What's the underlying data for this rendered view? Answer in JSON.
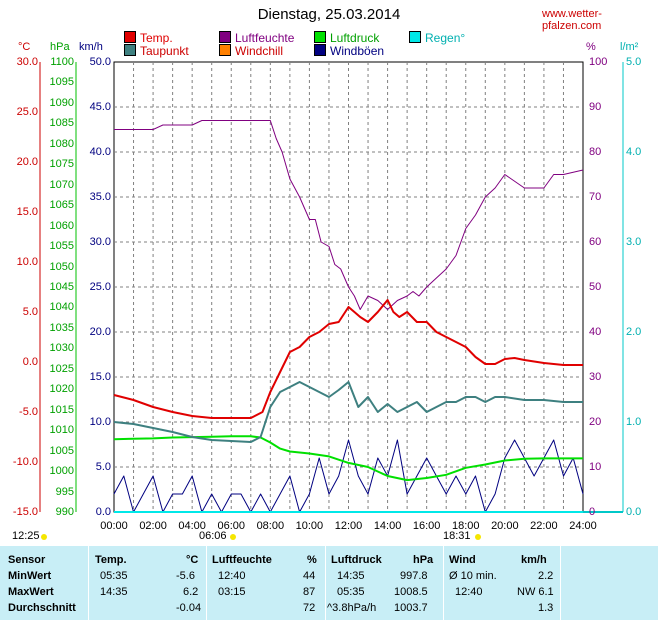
{
  "title": "Dienstag, 25.03.2014",
  "source": "www.wetter-pfalzen.com",
  "legend": [
    {
      "label": "Temp.",
      "color": "#e00000"
    },
    {
      "label": "Luftfeuchte",
      "color": "#800080"
    },
    {
      "label": "Luftdruck",
      "color": "#00e000"
    },
    {
      "label": "Regen°",
      "color": "#00e8e8"
    },
    {
      "label": "Taupunkt",
      "color": "#3e8080"
    },
    {
      "label": "Windchill",
      "color": "#ff8000"
    },
    {
      "label": "Windböen",
      "color": "#000080"
    }
  ],
  "units": {
    "temp": "°C",
    "pressure": "hPa",
    "wind": "km/h",
    "humidity": "%",
    "rain": "l/m²"
  },
  "axes": {
    "temp": [
      "30.0",
      "25.0",
      "20.0",
      "15.0",
      "10.0",
      "5.0",
      "0.0",
      "-5.0",
      "-10.0",
      "-15.0"
    ],
    "pressure": [
      "1100",
      "1095",
      "1090",
      "1085",
      "1080",
      "1075",
      "1070",
      "1065",
      "1060",
      "1055",
      "1050",
      "1045",
      "1040",
      "1035",
      "1030",
      "1025",
      "1020",
      "1015",
      "1010",
      "1005",
      "1000",
      "995",
      "990"
    ],
    "wind": [
      "50.0",
      "45.0",
      "40.0",
      "35.0",
      "30.0",
      "25.0",
      "20.0",
      "15.0",
      "10.0",
      "5.0",
      "0.0"
    ],
    "humidity": [
      "100",
      "90",
      "80",
      "70",
      "60",
      "50",
      "40",
      "30",
      "20",
      "10",
      "0"
    ],
    "rain": [
      "5.0",
      "4.0",
      "3.0",
      "2.0",
      "1.0",
      "0.0"
    ],
    "time": [
      "00:00",
      "02:00",
      "04:00",
      "06:00",
      "08:00",
      "10:00",
      "12:00",
      "14:00",
      "16:00",
      "18:00",
      "20:00",
      "22:00",
      "24:00"
    ]
  },
  "sun": {
    "sunrise": "06:06",
    "sunset": "18:31",
    "moonrise": "12:25"
  },
  "chart_data": {
    "type": "line",
    "title": "Dienstag, 25.03.2014",
    "x_unit": "hour",
    "xlim": [
      0,
      24
    ],
    "series": [
      {
        "name": "Temp.",
        "axis": "°C",
        "ylim": [
          -15,
          30
        ],
        "color": "#e00000",
        "x": [
          0,
          1,
          2,
          3,
          4,
          5,
          6,
          7,
          7.6,
          8,
          8.5,
          9,
          9.5,
          10,
          10.5,
          11,
          11.5,
          12,
          12.3,
          12.6,
          13,
          13.5,
          14,
          14.3,
          14.6,
          15,
          15.5,
          16,
          16.5,
          17,
          17.5,
          18,
          18.5,
          19,
          19.5,
          20,
          20.5,
          21,
          22,
          23,
          24
        ],
        "y": [
          -3.3,
          -3.8,
          -4.5,
          -5,
          -5.4,
          -5.6,
          -5.6,
          -5.6,
          -5,
          -3,
          -1,
          1,
          1.5,
          2.5,
          3,
          3.8,
          4,
          5.5,
          5,
          4.5,
          4,
          5,
          6.2,
          5,
          4.5,
          5,
          4,
          4,
          3,
          2.5,
          2,
          1.5,
          0.5,
          -0.2,
          -0.2,
          0.3,
          0.4,
          0.2,
          -0.1,
          -0.3,
          -0.3
        ]
      },
      {
        "name": "Taupunkt",
        "axis": "°C",
        "ylim": [
          -15,
          30
        ],
        "color": "#3e8080",
        "x": [
          0,
          1,
          2,
          3,
          4,
          5,
          6,
          7,
          7.5,
          8,
          8.5,
          9,
          9.5,
          10,
          10.5,
          11,
          11.5,
          12,
          12.5,
          13,
          13.5,
          14,
          14.5,
          15,
          15.5,
          16,
          16.5,
          17,
          17.5,
          18,
          18.5,
          19,
          19.5,
          20,
          21,
          22,
          23,
          24
        ],
        "y": [
          -6,
          -6.2,
          -6.6,
          -7,
          -7.5,
          -7.8,
          -7.9,
          -8,
          -7.5,
          -4.5,
          -3,
          -2.5,
          -2,
          -2.5,
          -3,
          -3.5,
          -2.8,
          -2,
          -4.5,
          -3.5,
          -5,
          -4.2,
          -5,
          -4.5,
          -4,
          -5,
          -4.5,
          -4,
          -4,
          -3.5,
          -3.5,
          -4,
          -3.5,
          -3.5,
          -3.8,
          -3.8,
          -4,
          -4
        ]
      },
      {
        "name": "Luftfeuchte",
        "axis": "%",
        "ylim": [
          0,
          100
        ],
        "color": "#800080",
        "x": [
          0,
          2,
          2.5,
          4,
          4.5,
          6,
          7,
          7.5,
          8,
          8.3,
          8.6,
          9,
          9.5,
          10,
          10.3,
          10.6,
          11,
          11.3,
          11.6,
          12,
          12.3,
          12.6,
          13,
          13.5,
          14,
          14.5,
          15,
          15.3,
          15.6,
          16,
          16.5,
          17,
          17.5,
          18,
          18.5,
          19,
          19.5,
          20,
          21,
          22,
          22.5,
          23,
          24
        ],
        "y": [
          85,
          85,
          86,
          86,
          87,
          87,
          87,
          87,
          87,
          83,
          80,
          74,
          70,
          65,
          65,
          60,
          59,
          55,
          54,
          50,
          48,
          45,
          48,
          47,
          45,
          47,
          48,
          49,
          48,
          50,
          52,
          54,
          57,
          63,
          66,
          70,
          72,
          75,
          72,
          72,
          75,
          75,
          76
        ]
      },
      {
        "name": "Luftdruck",
        "axis": "hPa",
        "ylim": [
          990,
          1100
        ],
        "color": "#00e000",
        "x": [
          0,
          1,
          2,
          3,
          4,
          5,
          6,
          7,
          7.5,
          8,
          8.5,
          9,
          10,
          11,
          12,
          13,
          14,
          15,
          16,
          17,
          18,
          19,
          20,
          21,
          22,
          23,
          24
        ],
        "y": [
          1007.8,
          1007.9,
          1008.0,
          1008.2,
          1008.3,
          1008.4,
          1008.5,
          1008.5,
          1008.2,
          1007.0,
          1005.5,
          1004.8,
          1004.3,
          1003.6,
          1002.0,
          1001.0,
          998.8,
          997.8,
          998.3,
          999.1,
          1000.8,
          1001.6,
          1002.6,
          1003.0,
          1003.1,
          1003.1,
          1003.1
        ]
      },
      {
        "name": "Windböen",
        "axis": "km/h",
        "ylim": [
          0,
          50
        ],
        "color": "#000080",
        "x": [
          0,
          0.5,
          1,
          1.5,
          2,
          2.5,
          3,
          3.5,
          4,
          4.5,
          5,
          5.5,
          6,
          6.5,
          7,
          7.5,
          8,
          8.5,
          9,
          9.5,
          10,
          10.5,
          11,
          11.5,
          12,
          12.5,
          13,
          13.5,
          14,
          14.5,
          15,
          15.5,
          16,
          16.5,
          17,
          17.5,
          18,
          18.5,
          19,
          19.5,
          20,
          20.5,
          21,
          21.5,
          22,
          22.5,
          23,
          23.5,
          24
        ],
        "y": [
          2,
          4,
          0,
          2,
          4,
          0,
          2,
          2,
          4,
          0,
          2,
          0,
          2,
          2,
          0,
          2,
          0,
          2,
          4,
          0,
          2,
          6,
          2,
          4,
          8,
          4,
          2,
          6,
          4,
          8,
          2,
          4,
          6,
          4,
          2,
          4,
          2,
          4,
          0,
          2,
          6,
          8,
          6,
          4,
          6,
          8,
          4,
          6,
          2
        ]
      },
      {
        "name": "Windchill",
        "axis": "°C",
        "ylim": [
          -15,
          30
        ],
        "color": "#ff8000",
        "x": [],
        "y": []
      },
      {
        "name": "Regen°",
        "axis": "l/m²",
        "ylim": [
          0,
          5
        ],
        "color": "#00e8e8",
        "x": [
          0,
          24
        ],
        "y": [
          0,
          0
        ]
      }
    ]
  },
  "table": {
    "headers": [
      {
        "label": "Sensor"
      },
      {
        "label": "Temp."
      },
      {
        "label": "°C"
      },
      {
        "label": "Luftfeuchte"
      },
      {
        "label": "%"
      },
      {
        "label": "Luftdruck"
      },
      {
        "label": "hPa"
      },
      {
        "label": "Wind"
      },
      {
        "label": "km/h"
      }
    ],
    "rows": [
      {
        "label": "MinWert",
        "temp_time": "05:35",
        "temp_val": "-5.6",
        "hum_time": "12:40",
        "hum_val": "44",
        "press_time": "14:35",
        "press_val": "997.8",
        "wind_label": "Ø 10 min.",
        "wind_val": "2.2"
      },
      {
        "label": "MaxWert",
        "temp_time": "14:35",
        "temp_val": "6.2",
        "hum_time": "03:15",
        "hum_val": "87",
        "press_time": "05:35",
        "press_val": "1008.5",
        "wind_label": "12:40",
        "wind_val": "NW 6.1"
      },
      {
        "label": "Durchschnitt",
        "temp_time": "",
        "temp_val": "-0.04",
        "hum_time": "",
        "hum_val": "72",
        "press_time": "^3.8hPa/h",
        "press_val": "1003.7",
        "wind_label": "",
        "wind_val": "1.3"
      }
    ]
  }
}
